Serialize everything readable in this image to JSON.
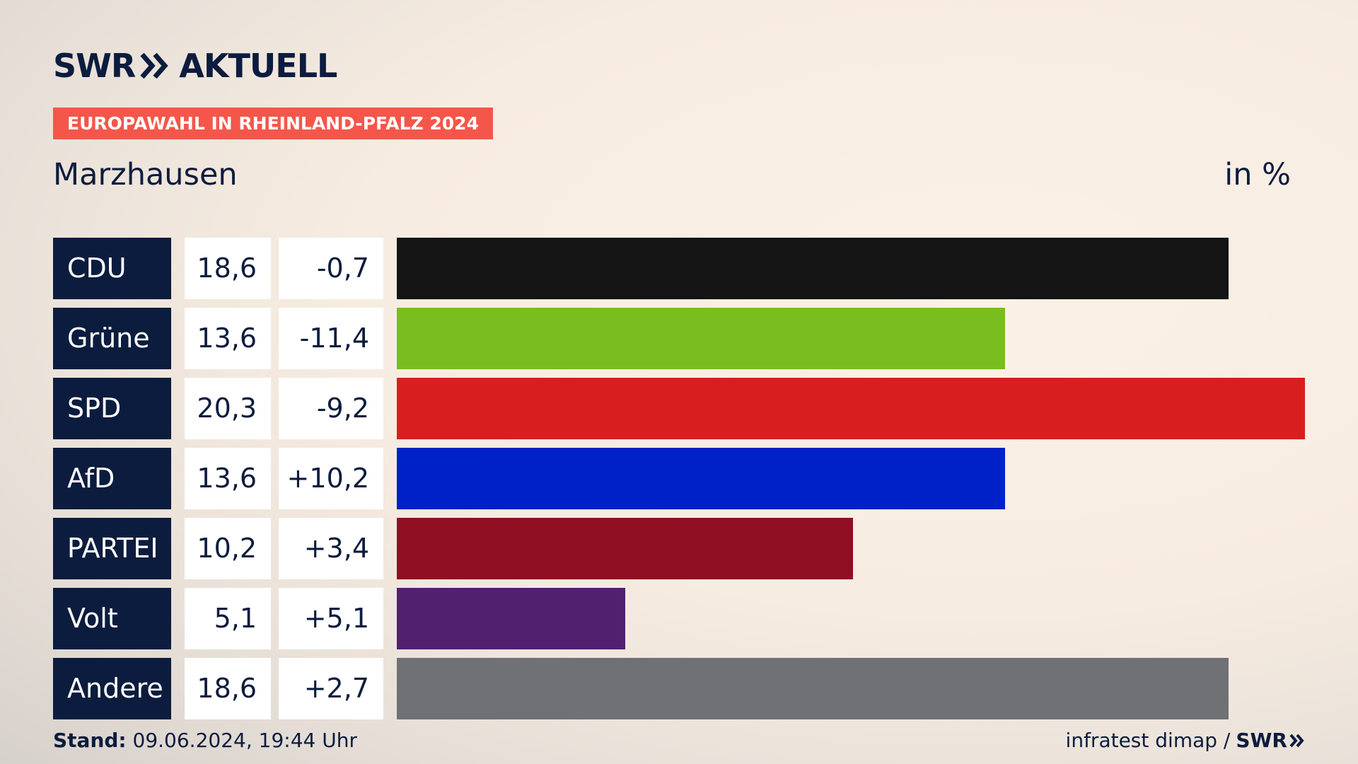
{
  "header": {
    "logo_left": "SWR",
    "logo_right": "AKTUELL",
    "tag": "EUROPAWAHL IN RHEINLAND-PFALZ 2024",
    "place": "Marzhausen",
    "unit": "in %"
  },
  "footer": {
    "stand_label": "Stand:",
    "stand_value": " 09.06.2024, 19:44 Uhr",
    "source": "infratest dimap /",
    "brand": "SWR"
  },
  "chart_data": {
    "type": "bar",
    "orientation": "horizontal",
    "categories": [
      "CDU",
      "Grüne",
      "SPD",
      "AfD",
      "PARTEI",
      "Volt",
      "Andere"
    ],
    "values": [
      18.6,
      13.6,
      20.3,
      13.6,
      10.2,
      5.1,
      18.6
    ],
    "value_labels": [
      "18,6",
      "13,6",
      "20,3",
      "13,6",
      "10,2",
      "5,1",
      "18,6"
    ],
    "change_labels": [
      "-0,7",
      "-11,4",
      "-9,2",
      "+10,2",
      "+3,4",
      "+5,1",
      "+2,7"
    ],
    "colors": [
      "#141414",
      "#79be1e",
      "#d71f1f",
      "#0021c8",
      "#8f0e22",
      "#51206e",
      "#707174"
    ],
    "xlim": [
      0,
      20.3
    ]
  }
}
